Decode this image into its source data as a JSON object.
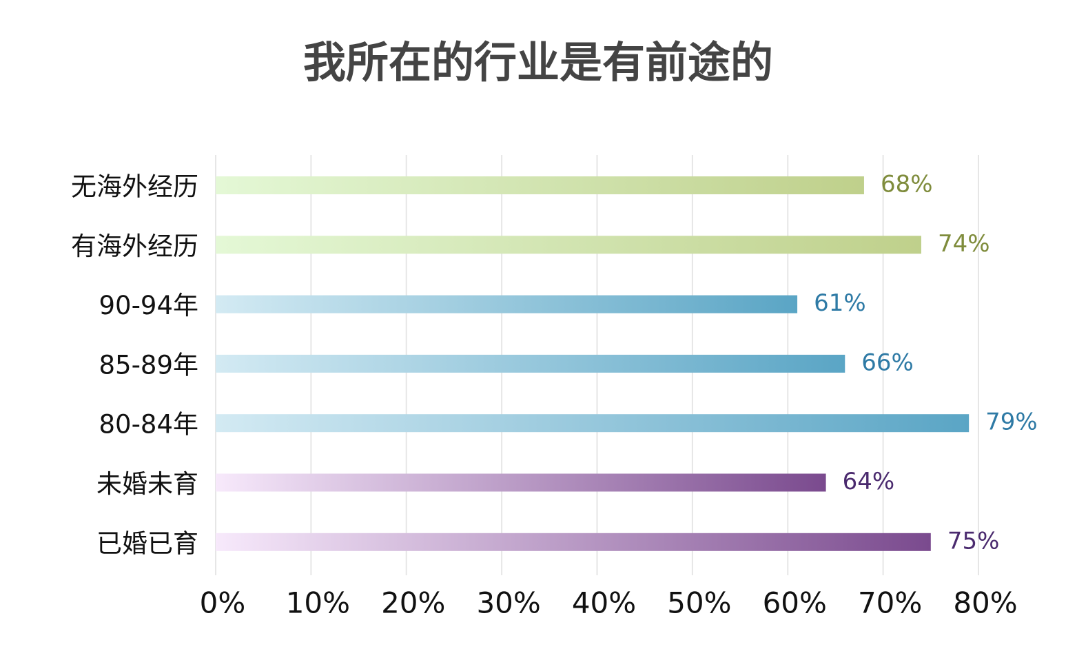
{
  "chart_data": {
    "type": "barh",
    "title": "我所在的行业是有前途的",
    "categories": [
      "无海外经历",
      "有海外经历",
      "90-94年",
      "85-89年",
      "80-84年",
      "未婚未育",
      "已婚已育"
    ],
    "values": [
      68,
      74,
      61,
      66,
      79,
      64,
      75
    ],
    "value_labels": [
      "68%",
      "74%",
      "61%",
      "66%",
      "79%",
      "64%",
      "75%"
    ],
    "colors": [
      [
        "#e4f8d6",
        "#bfd08b"
      ],
      [
        "#e4f8d6",
        "#bfd08b"
      ],
      [
        "#d3eaf3",
        "#5aa5c5"
      ],
      [
        "#d3eaf3",
        "#5aa5c5"
      ],
      [
        "#d3eaf3",
        "#5aa5c5"
      ],
      [
        "#f7e9fb",
        "#7a4a8e"
      ],
      [
        "#f7e9fb",
        "#7a4a8e"
      ]
    ],
    "label_colors": [
      "#7f8c3c",
      "#7f8c3c",
      "#2e7aa5",
      "#2e7aa5",
      "#2e7aa5",
      "#4a2a6e",
      "#4a2a6e"
    ],
    "xlim": [
      0,
      80
    ],
    "xticks": [
      {
        "value": 0,
        "label": "0%"
      },
      {
        "value": 10,
        "label": "10%"
      },
      {
        "value": 20,
        "label": "20%"
      },
      {
        "value": 30,
        "label": "30%"
      },
      {
        "value": 40,
        "label": "40%"
      },
      {
        "value": 50,
        "label": "50%"
      },
      {
        "value": 60,
        "label": "60%"
      },
      {
        "value": 70,
        "label": "70%"
      },
      {
        "value": 80,
        "label": "80%"
      }
    ],
    "grid": true
  }
}
